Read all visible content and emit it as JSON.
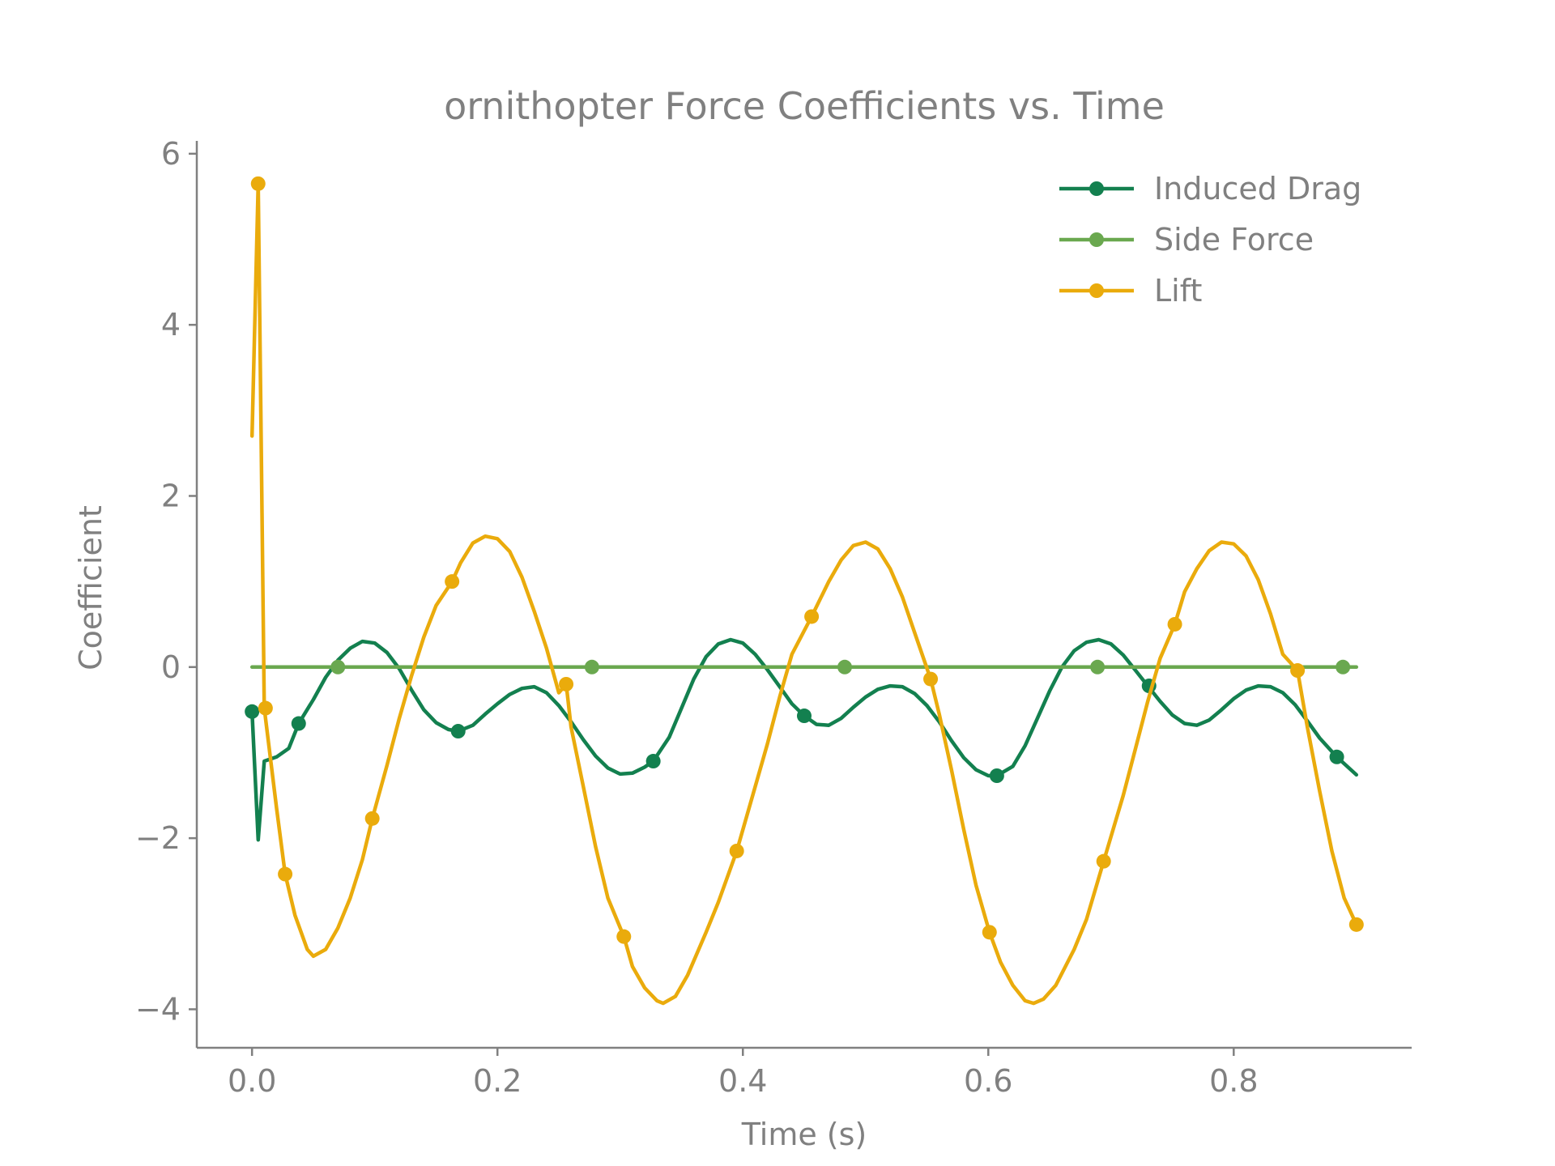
{
  "chart_data": {
    "type": "line",
    "title": "ornithopter Force Coefficients vs. Time",
    "xlabel": "Time (s)",
    "ylabel": "Coefficient",
    "xlim": [
      -0.045,
      0.945
    ],
    "ylim": [
      -4.45,
      6.15
    ],
    "xticks": [
      0.0,
      0.2,
      0.4,
      0.6,
      0.8
    ],
    "xtick_labels": [
      "0.0",
      "0.2",
      "0.4",
      "0.6",
      "0.8"
    ],
    "yticks": [
      -4,
      -2,
      0,
      2,
      4,
      6
    ],
    "ytick_labels": [
      "−4",
      "−2",
      "0",
      "2",
      "4",
      "6"
    ],
    "grid": false,
    "legend_position": "top-right",
    "series": [
      {
        "name": "Induced Drag",
        "color": "#13804f",
        "line": [
          [
            0.0,
            -0.52
          ],
          [
            0.005,
            -2.02
          ],
          [
            0.01,
            -1.1
          ],
          [
            0.02,
            -1.05
          ],
          [
            0.03,
            -0.95
          ],
          [
            0.038,
            -0.66
          ],
          [
            0.05,
            -0.38
          ],
          [
            0.06,
            -0.12
          ],
          [
            0.07,
            0.08
          ],
          [
            0.08,
            0.22
          ],
          [
            0.09,
            0.3
          ],
          [
            0.1,
            0.28
          ],
          [
            0.11,
            0.17
          ],
          [
            0.12,
            -0.02
          ],
          [
            0.13,
            -0.27
          ],
          [
            0.14,
            -0.5
          ],
          [
            0.15,
            -0.65
          ],
          [
            0.16,
            -0.73
          ],
          [
            0.168,
            -0.75
          ],
          [
            0.18,
            -0.68
          ],
          [
            0.19,
            -0.55
          ],
          [
            0.2,
            -0.43
          ],
          [
            0.21,
            -0.32
          ],
          [
            0.22,
            -0.25
          ],
          [
            0.23,
            -0.23
          ],
          [
            0.24,
            -0.3
          ],
          [
            0.25,
            -0.45
          ],
          [
            0.26,
            -0.64
          ],
          [
            0.27,
            -0.85
          ],
          [
            0.28,
            -1.04
          ],
          [
            0.29,
            -1.18
          ],
          [
            0.3,
            -1.25
          ],
          [
            0.31,
            -1.24
          ],
          [
            0.32,
            -1.17
          ],
          [
            0.327,
            -1.1
          ],
          [
            0.34,
            -0.82
          ],
          [
            0.35,
            -0.48
          ],
          [
            0.36,
            -0.14
          ],
          [
            0.37,
            0.12
          ],
          [
            0.38,
            0.27
          ],
          [
            0.39,
            0.32
          ],
          [
            0.4,
            0.28
          ],
          [
            0.41,
            0.15
          ],
          [
            0.42,
            -0.03
          ],
          [
            0.43,
            -0.23
          ],
          [
            0.44,
            -0.43
          ],
          [
            0.45,
            -0.57
          ],
          [
            0.46,
            -0.67
          ],
          [
            0.47,
            -0.68
          ],
          [
            0.48,
            -0.6
          ],
          [
            0.49,
            -0.47
          ],
          [
            0.5,
            -0.35
          ],
          [
            0.51,
            -0.26
          ],
          [
            0.52,
            -0.22
          ],
          [
            0.53,
            -0.23
          ],
          [
            0.54,
            -0.31
          ],
          [
            0.55,
            -0.45
          ],
          [
            0.56,
            -0.64
          ],
          [
            0.57,
            -0.86
          ],
          [
            0.58,
            -1.06
          ],
          [
            0.59,
            -1.2
          ],
          [
            0.6,
            -1.27
          ],
          [
            0.607,
            -1.27
          ],
          [
            0.62,
            -1.16
          ],
          [
            0.63,
            -0.92
          ],
          [
            0.64,
            -0.6
          ],
          [
            0.65,
            -0.28
          ],
          [
            0.66,
            0.0
          ],
          [
            0.67,
            0.19
          ],
          [
            0.68,
            0.29
          ],
          [
            0.69,
            0.32
          ],
          [
            0.7,
            0.27
          ],
          [
            0.71,
            0.14
          ],
          [
            0.72,
            -0.04
          ],
          [
            0.73,
            -0.22
          ],
          [
            0.74,
            -0.4
          ],
          [
            0.75,
            -0.56
          ],
          [
            0.76,
            -0.66
          ],
          [
            0.77,
            -0.68
          ],
          [
            0.78,
            -0.62
          ],
          [
            0.79,
            -0.5
          ],
          [
            0.8,
            -0.37
          ],
          [
            0.81,
            -0.27
          ],
          [
            0.82,
            -0.22
          ],
          [
            0.83,
            -0.23
          ],
          [
            0.84,
            -0.3
          ],
          [
            0.85,
            -0.44
          ],
          [
            0.86,
            -0.63
          ],
          [
            0.87,
            -0.83
          ],
          [
            0.884,
            -1.05
          ],
          [
            0.9,
            -1.26
          ]
        ],
        "markers": [
          [
            0.0,
            -0.52
          ],
          [
            0.038,
            -0.66
          ],
          [
            0.168,
            -0.75
          ],
          [
            0.327,
            -1.1
          ],
          [
            0.45,
            -0.57
          ],
          [
            0.607,
            -1.27
          ],
          [
            0.731,
            -0.22
          ],
          [
            0.884,
            -1.05
          ]
        ]
      },
      {
        "name": "Side Force",
        "color": "#6aa84f",
        "line": [
          [
            0.0,
            0.0
          ],
          [
            0.9,
            0.0
          ]
        ],
        "markers": [
          [
            0.07,
            0.0
          ],
          [
            0.277,
            0.0
          ],
          [
            0.483,
            0.0
          ],
          [
            0.689,
            0.0
          ],
          [
            0.889,
            0.0
          ]
        ]
      },
      {
        "name": "Lift",
        "color": "#eaab0c",
        "line": [
          [
            0.0,
            2.7
          ],
          [
            0.005,
            5.65
          ],
          [
            0.01,
            -0.48
          ],
          [
            0.02,
            -1.65
          ],
          [
            0.027,
            -2.42
          ],
          [
            0.035,
            -2.9
          ],
          [
            0.045,
            -3.3
          ],
          [
            0.05,
            -3.38
          ],
          [
            0.06,
            -3.3
          ],
          [
            0.07,
            -3.05
          ],
          [
            0.08,
            -2.7
          ],
          [
            0.09,
            -2.25
          ],
          [
            0.098,
            -1.77
          ],
          [
            0.11,
            -1.15
          ],
          [
            0.12,
            -0.6
          ],
          [
            0.13,
            -0.1
          ],
          [
            0.14,
            0.35
          ],
          [
            0.15,
            0.72
          ],
          [
            0.163,
            1.0
          ],
          [
            0.17,
            1.22
          ],
          [
            0.18,
            1.45
          ],
          [
            0.19,
            1.53
          ],
          [
            0.2,
            1.5
          ],
          [
            0.21,
            1.35
          ],
          [
            0.22,
            1.05
          ],
          [
            0.23,
            0.65
          ],
          [
            0.24,
            0.22
          ],
          [
            0.25,
            -0.3
          ],
          [
            0.256,
            -0.2
          ],
          [
            0.26,
            -0.7
          ],
          [
            0.27,
            -1.4
          ],
          [
            0.28,
            -2.1
          ],
          [
            0.29,
            -2.7
          ],
          [
            0.303,
            -3.15
          ],
          [
            0.31,
            -3.5
          ],
          [
            0.32,
            -3.75
          ],
          [
            0.33,
            -3.9
          ],
          [
            0.335,
            -3.93
          ],
          [
            0.345,
            -3.85
          ],
          [
            0.355,
            -3.6
          ],
          [
            0.37,
            -3.1
          ],
          [
            0.38,
            -2.75
          ],
          [
            0.395,
            -2.15
          ],
          [
            0.41,
            -1.4
          ],
          [
            0.42,
            -0.9
          ],
          [
            0.43,
            -0.35
          ],
          [
            0.44,
            0.15
          ],
          [
            0.456,
            0.59
          ],
          [
            0.47,
            1.0
          ],
          [
            0.48,
            1.25
          ],
          [
            0.49,
            1.42
          ],
          [
            0.5,
            1.46
          ],
          [
            0.51,
            1.38
          ],
          [
            0.52,
            1.15
          ],
          [
            0.53,
            0.82
          ],
          [
            0.54,
            0.4
          ],
          [
            0.553,
            -0.14
          ],
          [
            0.56,
            -0.55
          ],
          [
            0.57,
            -1.2
          ],
          [
            0.58,
            -1.9
          ],
          [
            0.59,
            -2.55
          ],
          [
            0.601,
            -3.1
          ],
          [
            0.61,
            -3.45
          ],
          [
            0.62,
            -3.72
          ],
          [
            0.63,
            -3.9
          ],
          [
            0.637,
            -3.93
          ],
          [
            0.645,
            -3.88
          ],
          [
            0.655,
            -3.72
          ],
          [
            0.67,
            -3.3
          ],
          [
            0.68,
            -2.95
          ],
          [
            0.694,
            -2.27
          ],
          [
            0.71,
            -1.5
          ],
          [
            0.72,
            -0.95
          ],
          [
            0.73,
            -0.4
          ],
          [
            0.74,
            0.1
          ],
          [
            0.752,
            0.5
          ],
          [
            0.76,
            0.88
          ],
          [
            0.77,
            1.15
          ],
          [
            0.78,
            1.36
          ],
          [
            0.79,
            1.46
          ],
          [
            0.8,
            1.44
          ],
          [
            0.81,
            1.3
          ],
          [
            0.82,
            1.02
          ],
          [
            0.83,
            0.62
          ],
          [
            0.84,
            0.15
          ],
          [
            0.852,
            -0.04
          ],
          [
            0.86,
            -0.7
          ],
          [
            0.87,
            -1.45
          ],
          [
            0.88,
            -2.15
          ],
          [
            0.89,
            -2.7
          ],
          [
            0.9,
            -3.01
          ]
        ],
        "markers": [
          [
            0.005,
            5.65
          ],
          [
            0.011,
            -0.48
          ],
          [
            0.027,
            -2.42
          ],
          [
            0.098,
            -1.77
          ],
          [
            0.163,
            1.0
          ],
          [
            0.256,
            -0.2
          ],
          [
            0.303,
            -3.15
          ],
          [
            0.395,
            -2.15
          ],
          [
            0.456,
            0.59
          ],
          [
            0.553,
            -0.14
          ],
          [
            0.601,
            -3.1
          ],
          [
            0.694,
            -2.27
          ],
          [
            0.752,
            0.5
          ],
          [
            0.852,
            -0.04
          ],
          [
            0.9,
            -3.01
          ]
        ]
      }
    ]
  }
}
